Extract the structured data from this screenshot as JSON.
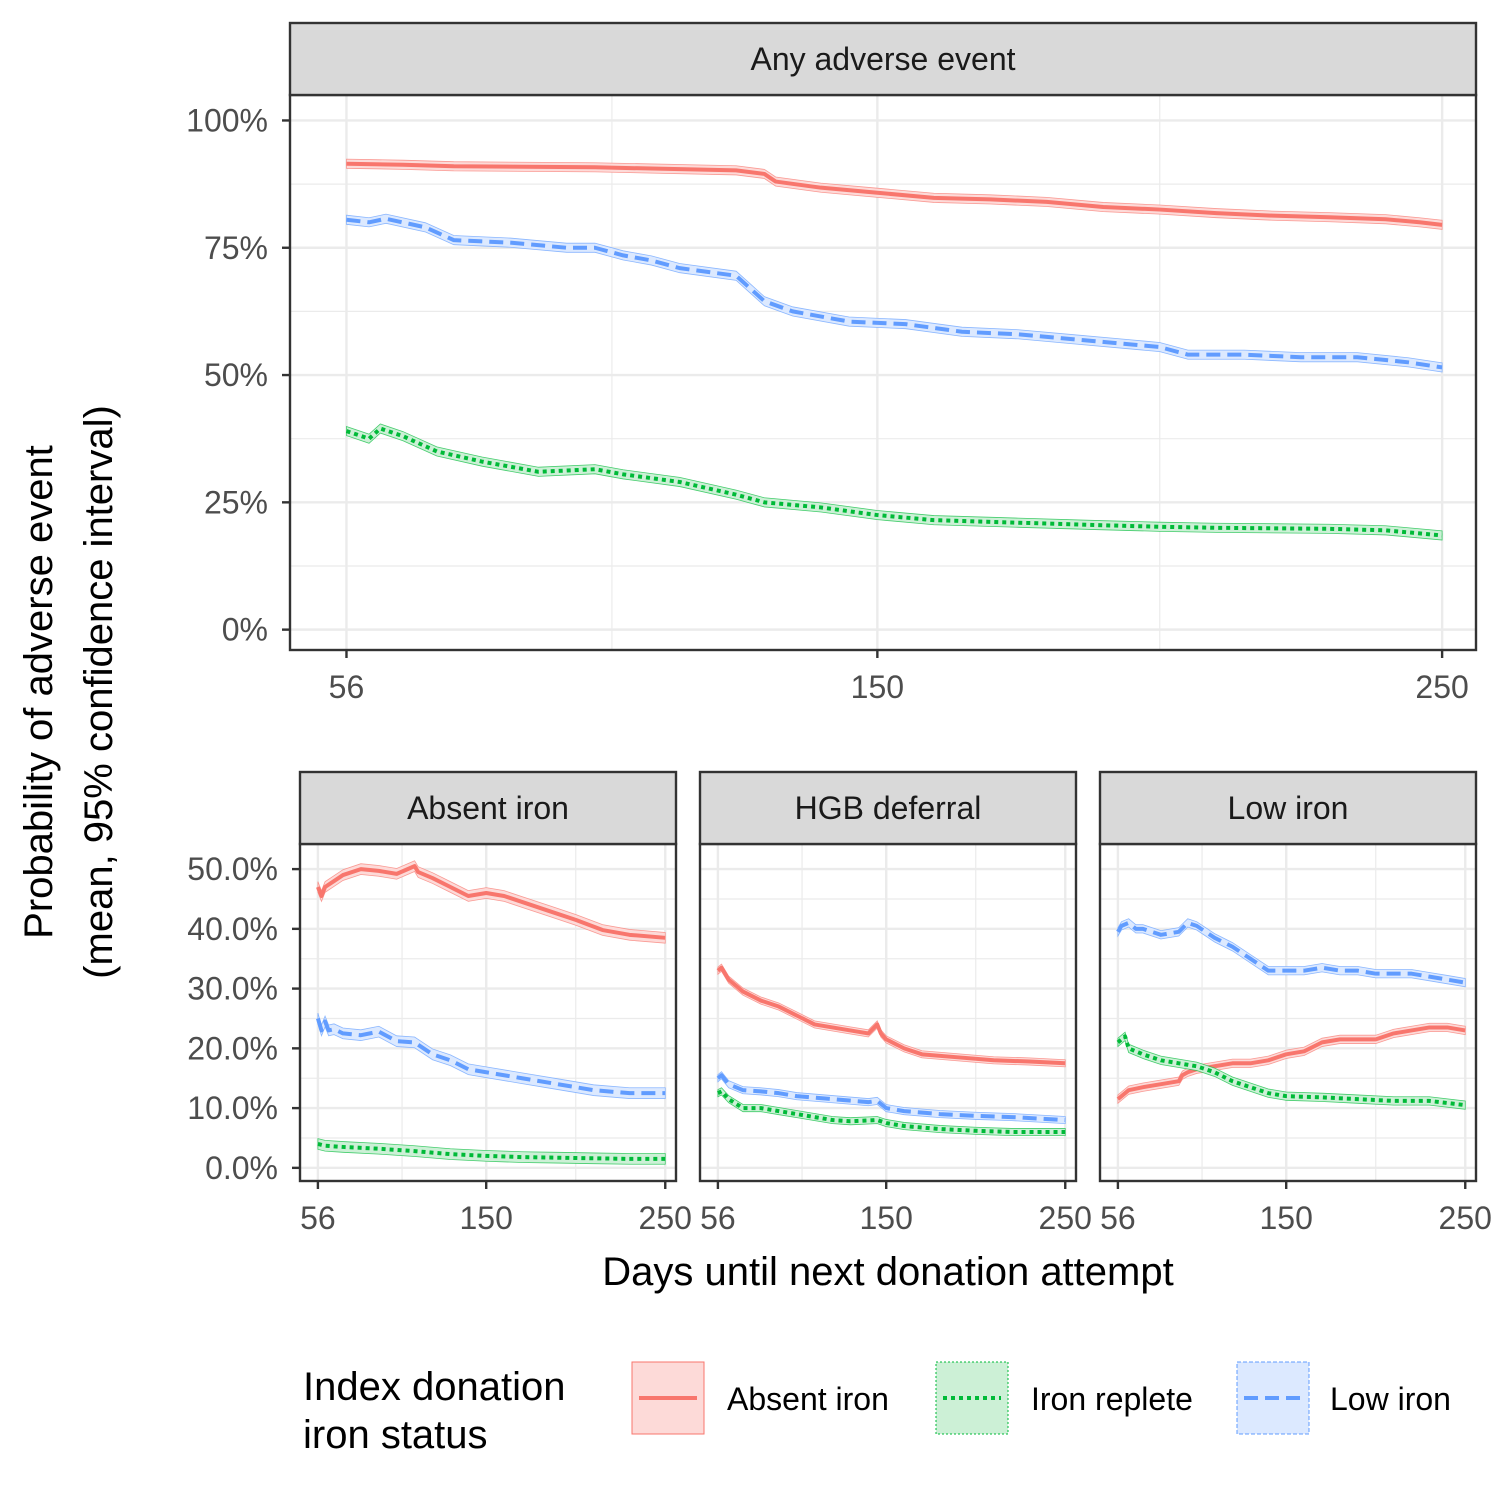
{
  "colors": {
    "absent": "#F8766D",
    "replete": "#00BA38",
    "low": "#619CFF",
    "absent_fill": "#FDDAD8",
    "replete_fill": "#CCF0D6",
    "low_fill": "#DCE9FF",
    "panel_border": "#333333",
    "strip_fill": "#D9D9D9",
    "grid": "#EBEBEB"
  },
  "chart_data": {
    "type": "line",
    "xlabel": "Days until next donation attempt",
    "ylabel_line1": "Probability of adverse event",
    "ylabel_line2": "(mean, 95% confidence interval)",
    "x_ticks": [
      "56",
      "150",
      "250"
    ],
    "x_range": [
      46,
      256
    ],
    "legend": {
      "position": "bottom",
      "title_line1": "Index donation",
      "title_line2": "iron status",
      "entries": [
        {
          "key": "absent",
          "label": "Absent iron",
          "linetype": "solid"
        },
        {
          "key": "replete",
          "label": "Iron replete",
          "linetype": "dotted"
        },
        {
          "key": "low",
          "label": "Low iron",
          "linetype": "dashed"
        }
      ]
    },
    "panels": [
      {
        "title": "Any adverse event",
        "y_ticks": [
          "0%",
          "25%",
          "50%",
          "75%",
          "100%"
        ],
        "y_tick_values": [
          0,
          0.25,
          0.5,
          0.75,
          1.0
        ],
        "ylim": [
          -0.04,
          1.05
        ],
        "series": [
          {
            "key": "absent",
            "x": [
              56,
              66,
              75,
              100,
              125,
              130,
              132,
              140,
              150,
              160,
              170,
              180,
              190,
              200,
              210,
              220,
              230,
              240,
              246,
              250
            ],
            "y": [
              0.915,
              0.913,
              0.91,
              0.908,
              0.902,
              0.895,
              0.88,
              0.868,
              0.858,
              0.848,
              0.845,
              0.84,
              0.83,
              0.825,
              0.818,
              0.813,
              0.81,
              0.806,
              0.8,
              0.795
            ]
          },
          {
            "key": "replete",
            "x": [
              56,
              60,
              62,
              66,
              72,
              80,
              90,
              100,
              105,
              115,
              125,
              130,
              140,
              150,
              160,
              175,
              190,
              200,
              210,
              230,
              240,
              250
            ],
            "y": [
              0.39,
              0.375,
              0.395,
              0.38,
              0.35,
              0.33,
              0.31,
              0.315,
              0.305,
              0.29,
              0.265,
              0.25,
              0.24,
              0.225,
              0.215,
              0.21,
              0.205,
              0.202,
              0.2,
              0.198,
              0.195,
              0.185
            ]
          },
          {
            "key": "low",
            "x": [
              56,
              60,
              63,
              70,
              75,
              85,
              95,
              100,
              105,
              110,
              115,
              125,
              127,
              130,
              135,
              145,
              155,
              165,
              175,
              185,
              195,
              200,
              205,
              215,
              225,
              235,
              244,
              250
            ],
            "y": [
              0.805,
              0.8,
              0.807,
              0.79,
              0.765,
              0.76,
              0.75,
              0.75,
              0.735,
              0.725,
              0.71,
              0.695,
              0.675,
              0.645,
              0.625,
              0.605,
              0.6,
              0.585,
              0.58,
              0.57,
              0.56,
              0.555,
              0.54,
              0.54,
              0.535,
              0.535,
              0.525,
              0.515
            ]
          }
        ]
      },
      {
        "title": "Absent iron",
        "y_ticks": [
          "0.0%",
          "10.0%",
          "20.0%",
          "30.0%",
          "40.0%",
          "50.0%"
        ],
        "y_tick_values": [
          0,
          0.1,
          0.2,
          0.3,
          0.4,
          0.5
        ],
        "ylim": [
          -0.022,
          0.542
        ],
        "series": [
          {
            "key": "absent",
            "x": [
              56,
              58,
              60,
              65,
              70,
              80,
              90,
              100,
              110,
              112,
              120,
              130,
              140,
              150,
              160,
              170,
              185,
              200,
              215,
              230,
              250
            ],
            "y": [
              0.47,
              0.455,
              0.47,
              0.48,
              0.49,
              0.5,
              0.497,
              0.492,
              0.505,
              0.495,
              0.485,
              0.47,
              0.455,
              0.46,
              0.455,
              0.445,
              0.43,
              0.415,
              0.398,
              0.39,
              0.385
            ]
          },
          {
            "key": "replete",
            "x": [
              56,
              60,
              70,
              90,
              110,
              130,
              150,
              170,
              190,
              210,
              230,
              250
            ],
            "y": [
              0.04,
              0.037,
              0.035,
              0.032,
              0.028,
              0.023,
              0.02,
              0.018,
              0.017,
              0.016,
              0.015,
              0.015
            ]
          },
          {
            "key": "low",
            "x": [
              56,
              58,
              60,
              62,
              65,
              70,
              80,
              90,
              100,
              110,
              120,
              130,
              140,
              150,
              170,
              190,
              210,
              230,
              250
            ],
            "y": [
              0.25,
              0.23,
              0.245,
              0.23,
              0.232,
              0.225,
              0.222,
              0.228,
              0.212,
              0.21,
              0.19,
              0.18,
              0.165,
              0.16,
              0.15,
              0.14,
              0.13,
              0.125,
              0.125
            ]
          }
        ]
      },
      {
        "title": "HGB deferral",
        "y_ticks": [],
        "y_tick_values": [
          0,
          0.1,
          0.2,
          0.3,
          0.4,
          0.5
        ],
        "ylim": [
          -0.022,
          0.542
        ],
        "series": [
          {
            "key": "absent",
            "x": [
              56,
              58,
              62,
              70,
              80,
              90,
              100,
              110,
              120,
              130,
              140,
              145,
              147,
              150,
              160,
              170,
              190,
              210,
              230,
              250
            ],
            "y": [
              0.33,
              0.335,
              0.315,
              0.295,
              0.28,
              0.27,
              0.255,
              0.24,
              0.235,
              0.23,
              0.225,
              0.24,
              0.225,
              0.215,
              0.2,
              0.19,
              0.185,
              0.18,
              0.178,
              0.175
            ]
          },
          {
            "key": "replete",
            "x": [
              56,
              58,
              62,
              70,
              80,
              90,
              100,
              110,
              120,
              130,
              145,
              150,
              160,
              180,
              200,
              220,
              250
            ],
            "y": [
              0.125,
              0.128,
              0.115,
              0.1,
              0.1,
              0.095,
              0.09,
              0.085,
              0.08,
              0.078,
              0.08,
              0.075,
              0.07,
              0.065,
              0.062,
              0.06,
              0.06
            ]
          },
          {
            "key": "low",
            "x": [
              56,
              58,
              62,
              70,
              80,
              90,
              100,
              120,
              140,
              145,
              150,
              160,
              180,
              200,
              220,
              250
            ],
            "y": [
              0.15,
              0.155,
              0.14,
              0.13,
              0.128,
              0.125,
              0.12,
              0.115,
              0.11,
              0.112,
              0.1,
              0.095,
              0.09,
              0.087,
              0.085,
              0.08
            ]
          }
        ]
      },
      {
        "title": "Low iron",
        "y_ticks": [],
        "y_tick_values": [
          0,
          0.1,
          0.2,
          0.3,
          0.4,
          0.5
        ],
        "ylim": [
          -0.022,
          0.542
        ],
        "series": [
          {
            "key": "absent",
            "x": [
              56,
              58,
              62,
              70,
              80,
              90,
              92,
              95,
              100,
              110,
              120,
              130,
              140,
              150,
              160,
              170,
              180,
              200,
              210,
              220,
              230,
              240,
              250
            ],
            "y": [
              0.115,
              0.12,
              0.13,
              0.135,
              0.14,
              0.145,
              0.155,
              0.16,
              0.165,
              0.17,
              0.175,
              0.175,
              0.18,
              0.19,
              0.195,
              0.21,
              0.215,
              0.215,
              0.225,
              0.23,
              0.235,
              0.235,
              0.23
            ]
          },
          {
            "key": "replete",
            "x": [
              56,
              58,
              60,
              62,
              66,
              70,
              80,
              90,
              100,
              110,
              120,
              130,
              140,
              150,
              170,
              190,
              210,
              230,
              250
            ],
            "y": [
              0.21,
              0.215,
              0.22,
              0.2,
              0.195,
              0.19,
              0.18,
              0.175,
              0.17,
              0.16,
              0.145,
              0.135,
              0.125,
              0.12,
              0.118,
              0.115,
              0.112,
              0.112,
              0.105
            ]
          },
          {
            "key": "low",
            "x": [
              56,
              58,
              62,
              66,
              70,
              80,
              90,
              95,
              100,
              110,
              120,
              130,
              140,
              150,
              160,
              170,
              180,
              190,
              200,
              210,
              220,
              230,
              240,
              250
            ],
            "y": [
              0.395,
              0.405,
              0.41,
              0.4,
              0.4,
              0.39,
              0.395,
              0.41,
              0.405,
              0.385,
              0.37,
              0.35,
              0.33,
              0.33,
              0.33,
              0.335,
              0.33,
              0.33,
              0.325,
              0.325,
              0.325,
              0.32,
              0.315,
              0.31
            ]
          }
        ]
      }
    ]
  }
}
